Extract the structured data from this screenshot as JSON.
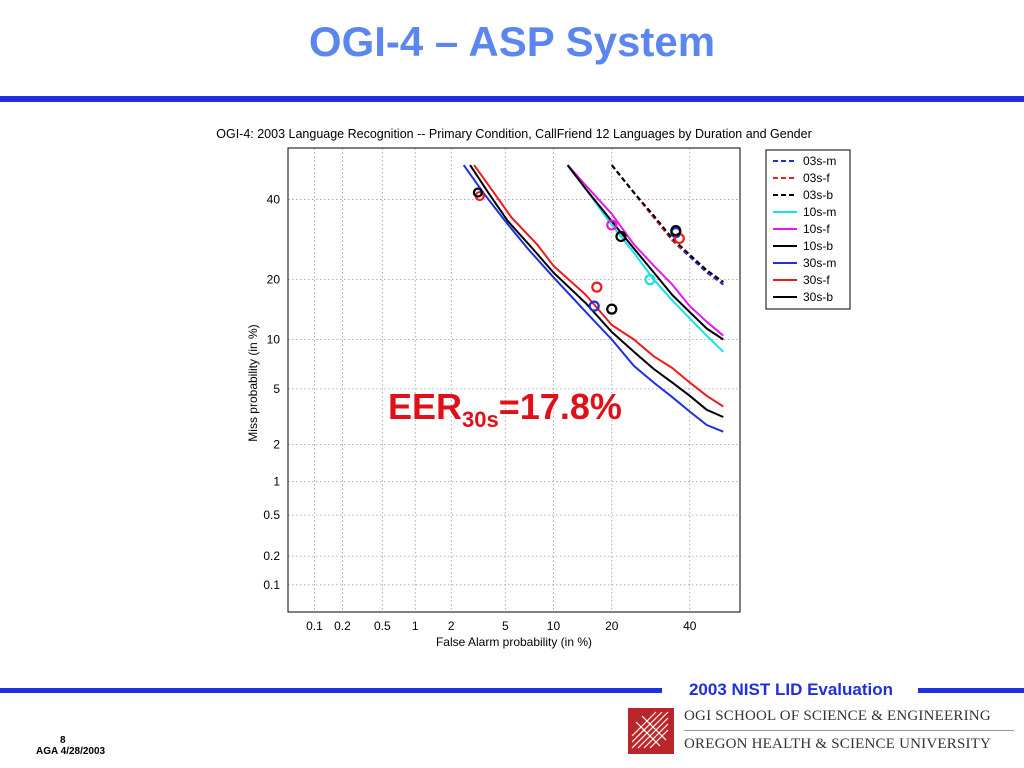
{
  "slide": {
    "title": "OGI-4 – ASP System",
    "footer": "2003 NIST LID Evaluation",
    "page_number": "8",
    "author_date": "AGA 4/28/2003",
    "logo_line1": "OGI SCHOOL OF SCIENCE & ENGINEERING",
    "logo_line2": "OREGON HEALTH & SCIENCE UNIVERSITY"
  },
  "annotation": {
    "eer_prefix": "EER",
    "eer_subscript": "30s",
    "eer_value": "=17.8%"
  },
  "chart_data": {
    "type": "line",
    "title": "OGI-4: 2003 Language Recognition -- Primary Condition, CallFriend 12 Languages by Duration and Gender",
    "xlabel": "False Alarm probability (in %)",
    "ylabel": "Miss probability (in %)",
    "scale": "normal-deviate (DET)",
    "grid": true,
    "legend_position": "top-right",
    "xlim": [
      0.05,
      55
    ],
    "ylim": [
      0.05,
      55
    ],
    "x_ticks": [
      0.1,
      0.2,
      0.5,
      1,
      2,
      5,
      10,
      20,
      40
    ],
    "y_ticks": [
      0.1,
      0.2,
      0.5,
      1,
      2,
      5,
      10,
      20,
      40
    ],
    "x_tick_labels": [
      "0.1",
      "0.2",
      "0.5",
      "1",
      "2",
      "5",
      "10",
      "20",
      "40"
    ],
    "y_tick_labels": [
      "0.1",
      "0.2",
      "0.5",
      "1",
      "2",
      "5",
      "10",
      "20",
      "40"
    ],
    "series": [
      {
        "name": "03s-m",
        "color": "#1f2ee0",
        "dash": "dashed",
        "x": [
          20,
          25,
          30,
          35,
          40,
          45,
          50
        ],
        "y": [
          50,
          42,
          35,
          29,
          25,
          21.5,
          19
        ],
        "marker": [
          36,
          31
        ]
      },
      {
        "name": "03s-f",
        "color": "#ee1c1c",
        "dash": "dashed",
        "x": [
          20,
          25,
          30,
          35,
          40,
          45,
          50
        ],
        "y": [
          50,
          42,
          35,
          29,
          25.5,
          22,
          19.5
        ],
        "marker": [
          37,
          29.5
        ]
      },
      {
        "name": "03s-b",
        "color": "#000000",
        "dash": "dashed",
        "x": [
          20,
          25,
          30,
          35,
          40,
          45,
          50
        ],
        "y": [
          50,
          42,
          35.5,
          29.5,
          25.5,
          22,
          19.5
        ],
        "marker": [
          36,
          31.5
        ]
      },
      {
        "name": "10s-m",
        "color": "#18e0e8",
        "dash": "solid",
        "x": [
          12,
          15,
          20,
          25,
          30,
          35,
          40,
          45,
          50
        ],
        "y": [
          50,
          43,
          33,
          26,
          20,
          16,
          13,
          10.5,
          8.5
        ],
        "marker": [
          29,
          20
        ]
      },
      {
        "name": "10s-f",
        "color": "#e619e6",
        "dash": "solid",
        "x": [
          12,
          15,
          20,
          25,
          30,
          35,
          40,
          45,
          50
        ],
        "y": [
          50,
          44,
          36,
          28,
          23,
          19,
          15,
          12.5,
          10.5
        ],
        "marker": [
          20,
          33
        ]
      },
      {
        "name": "10s-b",
        "color": "#000000",
        "dash": "solid",
        "x": [
          12,
          15,
          20,
          25,
          30,
          35,
          40,
          45,
          50
        ],
        "y": [
          50,
          43,
          34,
          27,
          21.5,
          17,
          14,
          11.5,
          10
        ],
        "marker": [
          22,
          30
        ]
      },
      {
        "name": "30s-m",
        "color": "#1f2ee0",
        "dash": "solid",
        "x": [
          2.5,
          3.5,
          5,
          7,
          10,
          15,
          20,
          25,
          30,
          35,
          40,
          45,
          50
        ],
        "y": [
          50,
          42,
          34,
          27,
          20.5,
          14,
          10,
          7,
          5.5,
          4.4,
          3.5,
          2.8,
          2.5
        ],
        "marker": [
          16.5,
          15
        ]
      },
      {
        "name": "30s-f",
        "color": "#ee1c1c",
        "dash": "solid",
        "x": [
          3,
          4,
          5.5,
          8,
          10,
          15,
          20,
          25,
          30,
          35,
          40,
          45,
          50
        ],
        "y": [
          50,
          43,
          35,
          28,
          23,
          17,
          12,
          10,
          8,
          6.8,
          5.5,
          4.5,
          3.8
        ],
        "marker": [
          17,
          18.5
        ]
      },
      {
        "name": "30s-b",
        "color": "#000000",
        "dash": "solid",
        "x": [
          2.8,
          3.8,
          5.2,
          7.5,
          10,
          15,
          20,
          25,
          30,
          35,
          40,
          45,
          50
        ],
        "y": [
          50,
          42,
          34,
          27,
          21.5,
          15.5,
          11,
          8.5,
          6.7,
          5.5,
          4.5,
          3.6,
          3.2
        ],
        "marker": [
          20,
          14.5
        ]
      }
    ],
    "start_markers": [
      {
        "series": "30s-m",
        "x": 3.2,
        "y": 42
      },
      {
        "series": "30s-f",
        "x": 3.3,
        "y": 41
      },
      {
        "series": "30s-b",
        "x": 3.2,
        "y": 42
      }
    ]
  }
}
